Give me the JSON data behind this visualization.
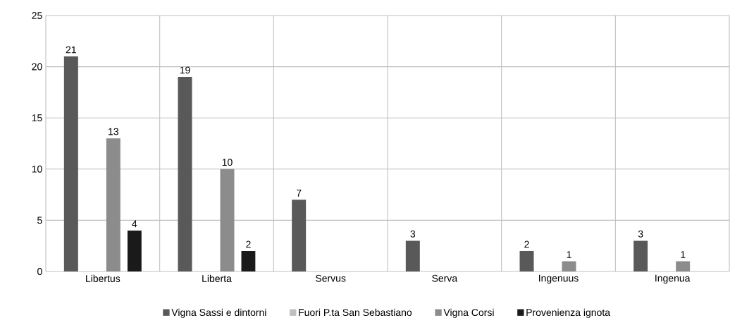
{
  "chart_data": {
    "type": "bar",
    "categories": [
      "Libertus",
      "Liberta",
      "Servus",
      "Serva",
      "Ingenuus",
      "Ingenua"
    ],
    "series": [
      {
        "name": "Vigna Sassi e dintorni",
        "color": "#595959",
        "values": [
          21,
          19,
          7,
          3,
          2,
          3
        ]
      },
      {
        "name": "Fuori P.ta San Sebastiano",
        "color": "#bfbfbf",
        "values": [
          null,
          null,
          null,
          null,
          null,
          null
        ]
      },
      {
        "name": "Vigna Corsi",
        "color": "#8c8c8c",
        "values": [
          13,
          10,
          null,
          null,
          1,
          1
        ]
      },
      {
        "name": "Provenienza ignota",
        "color": "#1a1a1a",
        "values": [
          4,
          2,
          null,
          null,
          null,
          null
        ]
      }
    ],
    "ylim": [
      0,
      25
    ],
    "yticks": [
      0,
      5,
      10,
      15,
      20,
      25
    ],
    "grid": true,
    "legend": "bottom",
    "data_labels": true
  }
}
